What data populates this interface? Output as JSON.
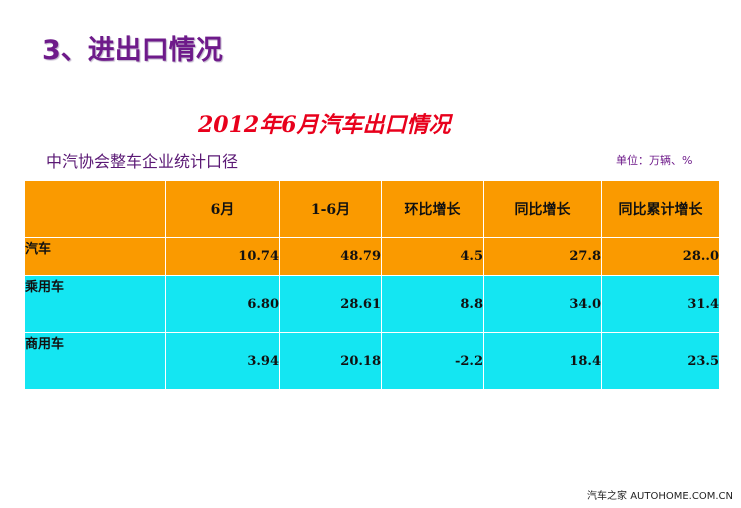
{
  "slide_title": "3、进出口情况",
  "table_title": "2012年6月汽车出口情况",
  "subtitle": "中汽协会整车企业统计口径",
  "unit_note": "单位：万辆、%",
  "table": {
    "headers": [
      "",
      "6月",
      "1-6月",
      "环比增长",
      "同比增长",
      "同比累计增长"
    ],
    "rows": [
      {
        "label": "汽车",
        "cells": [
          "10.74",
          "48.79",
          "4.5",
          "27.8",
          "28..0"
        ]
      },
      {
        "label": "乘用车",
        "cells": [
          "6.80",
          "28.61",
          "8.8",
          "34.0",
          "31.4"
        ]
      },
      {
        "label": "商用车",
        "cells": [
          "3.94",
          "20.18",
          "-2.2",
          "18.4",
          "23.5"
        ]
      }
    ]
  },
  "watermark": "汽车之家 AUTOHOME.COM.CN",
  "colors": {
    "header_bg": "#fa9a00",
    "sub_row_bg": "#14e6f2",
    "title_color": "#6e1a8a",
    "table_title_color": "#e8001c"
  }
}
